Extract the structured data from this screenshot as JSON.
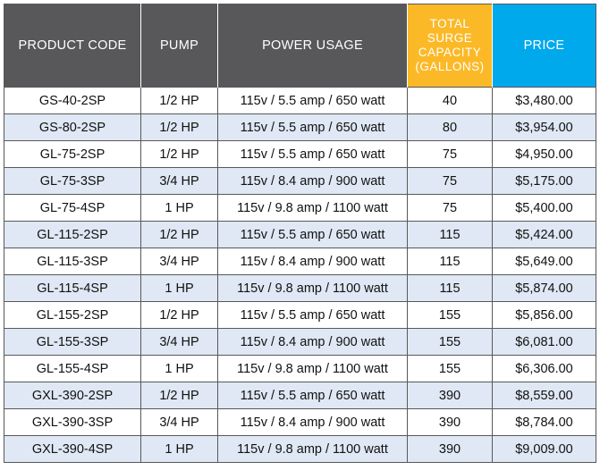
{
  "headers": {
    "product_code": "PRODUCT CODE",
    "pump": "PUMP",
    "power_usage": "POWER USAGE",
    "surge_line1": "TOTAL",
    "surge_line2": "SURGE",
    "surge_line3": "CAPACITY",
    "surge_line4": "(GALLONS)",
    "price": "PRICE"
  },
  "colors": {
    "header_gray": "#58585a",
    "header_yellow": "#fbb927",
    "header_blue": "#00a9ec",
    "row_stripe": "#dfe8f4"
  },
  "rows": [
    {
      "code": "GS-40-2SP",
      "pump": "1/2 HP",
      "power": "115v / 5.5 amp / 650 watt",
      "capacity": "40",
      "price": "$3,480.00"
    },
    {
      "code": "GS-80-2SP",
      "pump": "1/2 HP",
      "power": "115v / 5.5 amp / 650 watt",
      "capacity": "80",
      "price": "$3,954.00"
    },
    {
      "code": "GL-75-2SP",
      "pump": "1/2 HP",
      "power": "115v / 5.5 amp / 650 watt",
      "capacity": "75",
      "price": "$4,950.00"
    },
    {
      "code": "GL-75-3SP",
      "pump": "3/4 HP",
      "power": "115v / 8.4 amp / 900 watt",
      "capacity": "75",
      "price": "$5,175.00"
    },
    {
      "code": "GL-75-4SP",
      "pump": "1 HP",
      "power": "115v / 9.8 amp / 1100 watt",
      "capacity": "75",
      "price": "$5,400.00"
    },
    {
      "code": "GL-115-2SP",
      "pump": "1/2 HP",
      "power": "115v / 5.5 amp / 650 watt",
      "capacity": "115",
      "price": "$5,424.00"
    },
    {
      "code": "GL-115-3SP",
      "pump": "3/4 HP",
      "power": "115v / 8.4 amp / 900 watt",
      "capacity": "115",
      "price": "$5,649.00"
    },
    {
      "code": "GL-115-4SP",
      "pump": "1 HP",
      "power": "115v / 9.8 amp / 1100 watt",
      "capacity": "115",
      "price": "$5,874.00"
    },
    {
      "code": "GL-155-2SP",
      "pump": "1/2 HP",
      "power": "115v / 5.5 amp / 650 watt",
      "capacity": "155",
      "price": "$5,856.00"
    },
    {
      "code": "GL-155-3SP",
      "pump": "3/4 HP",
      "power": "115v / 8.4 amp / 900 watt",
      "capacity": "155",
      "price": "$6,081.00"
    },
    {
      "code": "GL-155-4SP",
      "pump": "1 HP",
      "power": "115v / 9.8 amp / 1100 watt",
      "capacity": "155",
      "price": "$6,306.00"
    },
    {
      "code": "GXL-390-2SP",
      "pump": "1/2 HP",
      "power": "115v / 5.5 amp / 650 watt",
      "capacity": "390",
      "price": "$8,559.00"
    },
    {
      "code": "GXL-390-3SP",
      "pump": "3/4 HP",
      "power": "115v / 8.4 amp / 900 watt",
      "capacity": "390",
      "price": "$8,784.00"
    },
    {
      "code": "GXL-390-4SP",
      "pump": "1 HP",
      "power": "115v / 9.8 amp / 1100 watt",
      "capacity": "390",
      "price": "$9,009.00"
    }
  ]
}
